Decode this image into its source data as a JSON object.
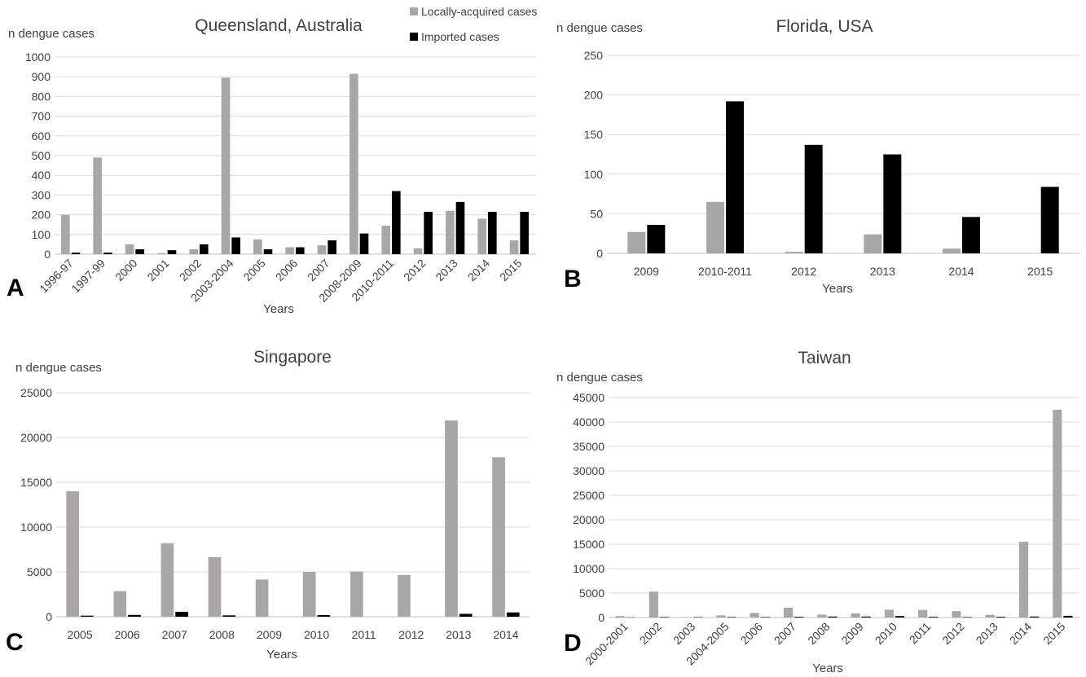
{
  "colors": {
    "local": "#a8a6a6",
    "imported": "#000000",
    "grid": "#d9d9d9",
    "axis": "#bfbfbf",
    "text": "#404040"
  },
  "chart_data": [
    {
      "panel": "A",
      "type": "bar",
      "title": "Queensland, Australia",
      "ylabel": "n dengue cases",
      "xlabel": "Years",
      "ylim": [
        0,
        1000
      ],
      "yticks": [
        "0",
        "100",
        "200",
        "300",
        "400",
        "500",
        "600",
        "700",
        "800",
        "900",
        "1000"
      ],
      "legend": "top-right",
      "categories": [
        "1996-97",
        "1997-99",
        "2000",
        "2001",
        "2002",
        "2003-2004",
        "2005",
        "2006",
        "2007",
        "2008-2009",
        "2010-2011",
        "2012",
        "2013",
        "2014",
        "2015"
      ],
      "series": [
        {
          "name": "Locally-acquired cases",
          "values": [
            200,
            490,
            50,
            5,
            25,
            895,
            75,
            35,
            45,
            915,
            145,
            30,
            220,
            180,
            70
          ]
        },
        {
          "name": "Imported cases",
          "values": [
            8,
            8,
            25,
            20,
            50,
            85,
            25,
            35,
            70,
            105,
            320,
            215,
            265,
            215,
            215
          ]
        }
      ]
    },
    {
      "panel": "B",
      "type": "bar",
      "title": "Florida, USA",
      "ylabel": "n dengue cases",
      "xlabel": "Years",
      "ylim": [
        0,
        250
      ],
      "yticks": [
        "0",
        "50",
        "100",
        "150",
        "200",
        "250"
      ],
      "categories": [
        "2009",
        "2010-2011",
        "2012",
        "2013",
        "2014",
        "2015"
      ],
      "series": [
        {
          "name": "Locally-acquired cases",
          "values": [
            27,
            65,
            2,
            24,
            6,
            0
          ]
        },
        {
          "name": "Imported cases",
          "values": [
            36,
            192,
            137,
            125,
            46,
            84
          ]
        }
      ]
    },
    {
      "panel": "C",
      "type": "bar",
      "title": "Singapore",
      "ylabel": "n dengue cases",
      "xlabel": "Years",
      "ylim": [
        0,
        25000
      ],
      "yticks": [
        "0",
        "5000",
        "10000",
        "15000",
        "20000",
        "25000"
      ],
      "categories": [
        "2005",
        "2006",
        "2007",
        "2008",
        "2009",
        "2010",
        "2011",
        "2012",
        "2013",
        "2014"
      ],
      "series": [
        {
          "name": "Locally-acquired cases",
          "values": [
            14000,
            2850,
            8200,
            6650,
            4150,
            5000,
            5050,
            4650,
            21900,
            17800
          ]
        },
        {
          "name": "Imported cases",
          "values": [
            120,
            200,
            550,
            150,
            0,
            180,
            0,
            0,
            320,
            480
          ]
        }
      ]
    },
    {
      "panel": "D",
      "type": "bar",
      "title": "Taiwan",
      "ylabel": "n dengue cases",
      "xlabel": "Years",
      "ylim": [
        0,
        45000
      ],
      "yticks": [
        "0",
        "5000",
        "10000",
        "15000",
        "20000",
        "25000",
        "30000",
        "35000",
        "40000",
        "45000"
      ],
      "categories": [
        "2000-2001",
        "2002",
        "2003",
        "2004-2005",
        "2006",
        "2007",
        "2008",
        "2009",
        "2010",
        "2011",
        "2012",
        "2013",
        "2014",
        "2015"
      ],
      "series": [
        {
          "name": "Locally-acquired cases",
          "values": [
            300,
            5300,
            80,
            450,
            950,
            2000,
            600,
            850,
            1600,
            1550,
            1300,
            550,
            15500,
            42500
          ]
        },
        {
          "name": "Imported cases",
          "values": [
            50,
            100,
            80,
            100,
            100,
            150,
            200,
            200,
            300,
            150,
            100,
            150,
            200,
            350
          ]
        }
      ]
    }
  ]
}
